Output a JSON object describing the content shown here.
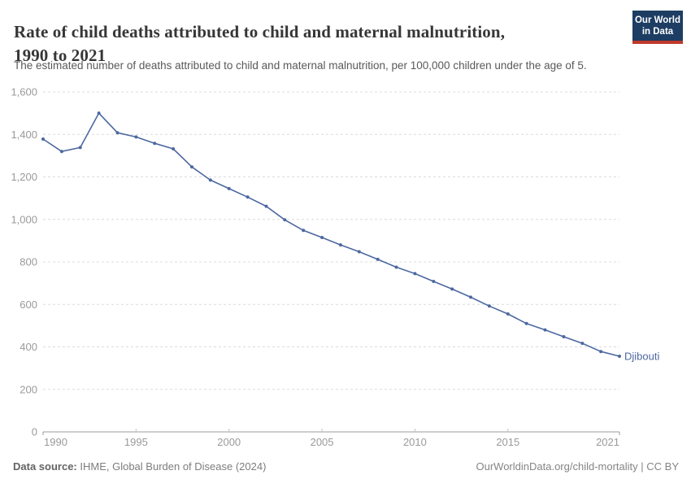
{
  "header": {
    "title_line1": "Rate of child deaths attributed to child and maternal malnutrition,",
    "title_line2": "1990 to 2021",
    "subtitle": "The estimated number of deaths attributed to child and maternal malnutrition, per 100,000 children under the age of 5."
  },
  "logo": {
    "line1": "Our World",
    "line2": "in Data",
    "bg_color": "#1d3d63",
    "stripe_color": "#c0392b"
  },
  "chart_data": {
    "type": "line",
    "title": "Rate of child deaths attributed to child and maternal malnutrition, 1990 to 2021",
    "xlabel": "",
    "ylabel": "",
    "xlim": [
      1990,
      2021
    ],
    "ylim": [
      0,
      1600
    ],
    "grid": "horizontal-dashed",
    "legend_position": "end-of-line-label",
    "x_ticks": [
      {
        "value": 1990,
        "label": "1990"
      },
      {
        "value": 1995,
        "label": "1995"
      },
      {
        "value": 2000,
        "label": "2000"
      },
      {
        "value": 2005,
        "label": "2005"
      },
      {
        "value": 2010,
        "label": "2010"
      },
      {
        "value": 2015,
        "label": "2015"
      },
      {
        "value": 2021,
        "label": "2021"
      }
    ],
    "y_ticks": [
      {
        "value": 0,
        "label": "0"
      },
      {
        "value": 200,
        "label": "200"
      },
      {
        "value": 400,
        "label": "400"
      },
      {
        "value": 600,
        "label": "600"
      },
      {
        "value": 800,
        "label": "800"
      },
      {
        "value": 1000,
        "label": "1,000"
      },
      {
        "value": 1200,
        "label": "1,200"
      },
      {
        "value": 1400,
        "label": "1,400"
      },
      {
        "value": 1600,
        "label": "1,600"
      }
    ],
    "series": [
      {
        "name": "Djibouti",
        "color": "#4d68a0",
        "x": [
          1990,
          1991,
          1992,
          1993,
          1994,
          1995,
          1996,
          1997,
          1998,
          1999,
          2000,
          2001,
          2002,
          2003,
          2004,
          2005,
          2006,
          2007,
          2008,
          2009,
          2010,
          2011,
          2012,
          2013,
          2014,
          2015,
          2016,
          2017,
          2018,
          2019,
          2020,
          2021
        ],
        "values": [
          1378,
          1320,
          1338,
          1500,
          1408,
          1388,
          1358,
          1332,
          1247,
          1185,
          1145,
          1105,
          1062,
          998,
          948,
          915,
          880,
          848,
          812,
          775,
          745,
          708,
          672,
          634,
          592,
          555,
          510,
          480,
          448,
          417,
          378,
          356
        ]
      }
    ]
  },
  "footer": {
    "source_label": "Data source:",
    "source_text": "IHME, Global Burden of Disease (2024)",
    "rights_text": "OurWorldinData.org/child-mortality | CC BY"
  },
  "colors": {
    "grid": "#dcdcdc",
    "axis": "#9b9b9b",
    "tick": "#c4c4c4",
    "tick_label": "#9a9a9a",
    "title": "#363636",
    "subtitle": "#595959"
  }
}
